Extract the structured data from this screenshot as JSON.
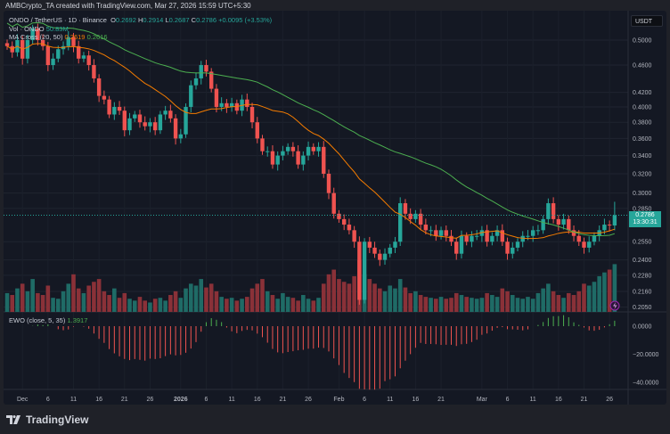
{
  "credit": "AMBCrypto_TA created with TradingView.com, Mar 27, 2026 15:59 UTC+5:30",
  "legend": {
    "symbol": "ONDO / TetherUS · 1D · Binance",
    "o_label": "O",
    "o": "0.2692",
    "h_label": "H",
    "h": "0.2914",
    "l_label": "L",
    "l": "0.2687",
    "c_label": "C",
    "c": "0.2786",
    "change": "+0.0095 (+3.53%)",
    "vol_label": "Vol · ONDO",
    "vol": "50.83M",
    "ma_label": "MA Cross (20, 50)",
    "ma_fast": "0.2619",
    "ma_slow": "0.2616",
    "ewo_label": "EWO (close, 5, 35)",
    "ewo": "1.3917"
  },
  "currency": "USDT",
  "last_price": "0.2786",
  "countdown": "13:30:31",
  "brand": "TradingView",
  "colors": {
    "up": "#26a69a",
    "down": "#ef5350",
    "ma_fast": "#f57c00",
    "ma_slow": "#4caf50",
    "bg": "#141823"
  },
  "chart_data": {
    "type": "candlestick",
    "title": "ONDO / TetherUS · 1D · Binance",
    "start_date": "2025-11-28",
    "price_ticks": [
      "0.5000",
      "0.4600",
      "0.4200",
      "0.4000",
      "0.3800",
      "0.3600",
      "0.3400",
      "0.3200",
      "0.3000",
      "0.2850",
      "0.2550",
      "0.2400",
      "0.2280",
      "0.2160",
      "0.2050"
    ],
    "ewo_ticks": [
      "0.0000",
      "−20.0000",
      "−40.0000"
    ],
    "x_ticks": [
      {
        "label": "Dec",
        "day": 3
      },
      {
        "label": "6",
        "day": 8
      },
      {
        "label": "11",
        "day": 13
      },
      {
        "label": "16",
        "day": 18
      },
      {
        "label": "21",
        "day": 23
      },
      {
        "label": "26",
        "day": 28
      },
      {
        "label": "2026",
        "day": 34
      },
      {
        "label": "6",
        "day": 39
      },
      {
        "label": "11",
        "day": 44
      },
      {
        "label": "16",
        "day": 49
      },
      {
        "label": "21",
        "day": 54
      },
      {
        "label": "26",
        "day": 59
      },
      {
        "label": "Feb",
        "day": 65
      },
      {
        "label": "6",
        "day": 70
      },
      {
        "label": "11",
        "day": 75
      },
      {
        "label": "16",
        "day": 80
      },
      {
        "label": "21",
        "day": 85
      },
      {
        "label": "Mar",
        "day": 93
      },
      {
        "label": "6",
        "day": 98
      },
      {
        "label": "11",
        "day": 103
      },
      {
        "label": "16",
        "day": 108
      },
      {
        "label": "21",
        "day": 113
      },
      {
        "label": "26",
        "day": 118
      }
    ],
    "close": [
      0.49,
      0.48,
      0.5,
      0.47,
      0.5,
      0.52,
      0.5,
      0.49,
      0.46,
      0.47,
      0.485,
      0.49,
      0.505,
      0.49,
      0.47,
      0.475,
      0.46,
      0.44,
      0.415,
      0.41,
      0.39,
      0.4,
      0.395,
      0.37,
      0.385,
      0.39,
      0.38,
      0.375,
      0.38,
      0.37,
      0.39,
      0.395,
      0.385,
      0.36,
      0.365,
      0.4,
      0.43,
      0.44,
      0.46,
      0.45,
      0.425,
      0.4,
      0.405,
      0.4,
      0.405,
      0.395,
      0.41,
      0.4,
      0.38,
      0.36,
      0.345,
      0.345,
      0.33,
      0.34,
      0.345,
      0.35,
      0.345,
      0.33,
      0.34,
      0.35,
      0.345,
      0.35,
      0.32,
      0.3,
      0.28,
      0.275,
      0.27,
      0.265,
      0.255,
      0.21,
      0.255,
      0.25,
      0.245,
      0.24,
      0.245,
      0.25,
      0.255,
      0.29,
      0.28,
      0.275,
      0.28,
      0.27,
      0.265,
      0.265,
      0.26,
      0.265,
      0.26,
      0.255,
      0.245,
      0.26,
      0.255,
      0.26,
      0.26,
      0.265,
      0.255,
      0.26,
      0.265,
      0.255,
      0.245,
      0.25,
      0.255,
      0.26,
      0.26,
      0.265,
      0.265,
      0.275,
      0.29,
      0.275,
      0.27,
      0.275,
      0.265,
      0.26,
      0.255,
      0.25,
      0.255,
      0.26,
      0.265,
      0.27,
      0.2692,
      0.2786
    ],
    "volume_m": [
      20,
      18,
      25,
      30,
      22,
      35,
      20,
      18,
      28,
      15,
      14,
      22,
      30,
      40,
      25,
      20,
      28,
      32,
      35,
      22,
      18,
      25,
      15,
      20,
      14,
      12,
      16,
      12,
      10,
      14,
      15,
      12,
      18,
      22,
      15,
      25,
      30,
      28,
      35,
      26,
      30,
      22,
      16,
      14,
      15,
      12,
      14,
      16,
      25,
      30,
      35,
      22,
      18,
      14,
      20,
      16,
      15,
      12,
      18,
      14,
      12,
      15,
      30,
      40,
      45,
      35,
      32,
      30,
      38,
      55,
      40,
      35,
      30,
      25,
      22,
      28,
      25,
      35,
      26,
      20,
      22,
      18,
      16,
      15,
      14,
      16,
      14,
      15,
      20,
      18,
      16,
      15,
      14,
      15,
      20,
      18,
      16,
      25,
      22,
      18,
      15,
      14,
      16,
      14,
      20,
      25,
      30,
      22,
      18,
      15,
      20,
      18,
      22,
      30,
      28,
      32,
      38,
      42,
      45,
      50.83
    ],
    "ma_periods": [
      20,
      50
    ],
    "ewo_params": [
      5,
      35
    ]
  }
}
